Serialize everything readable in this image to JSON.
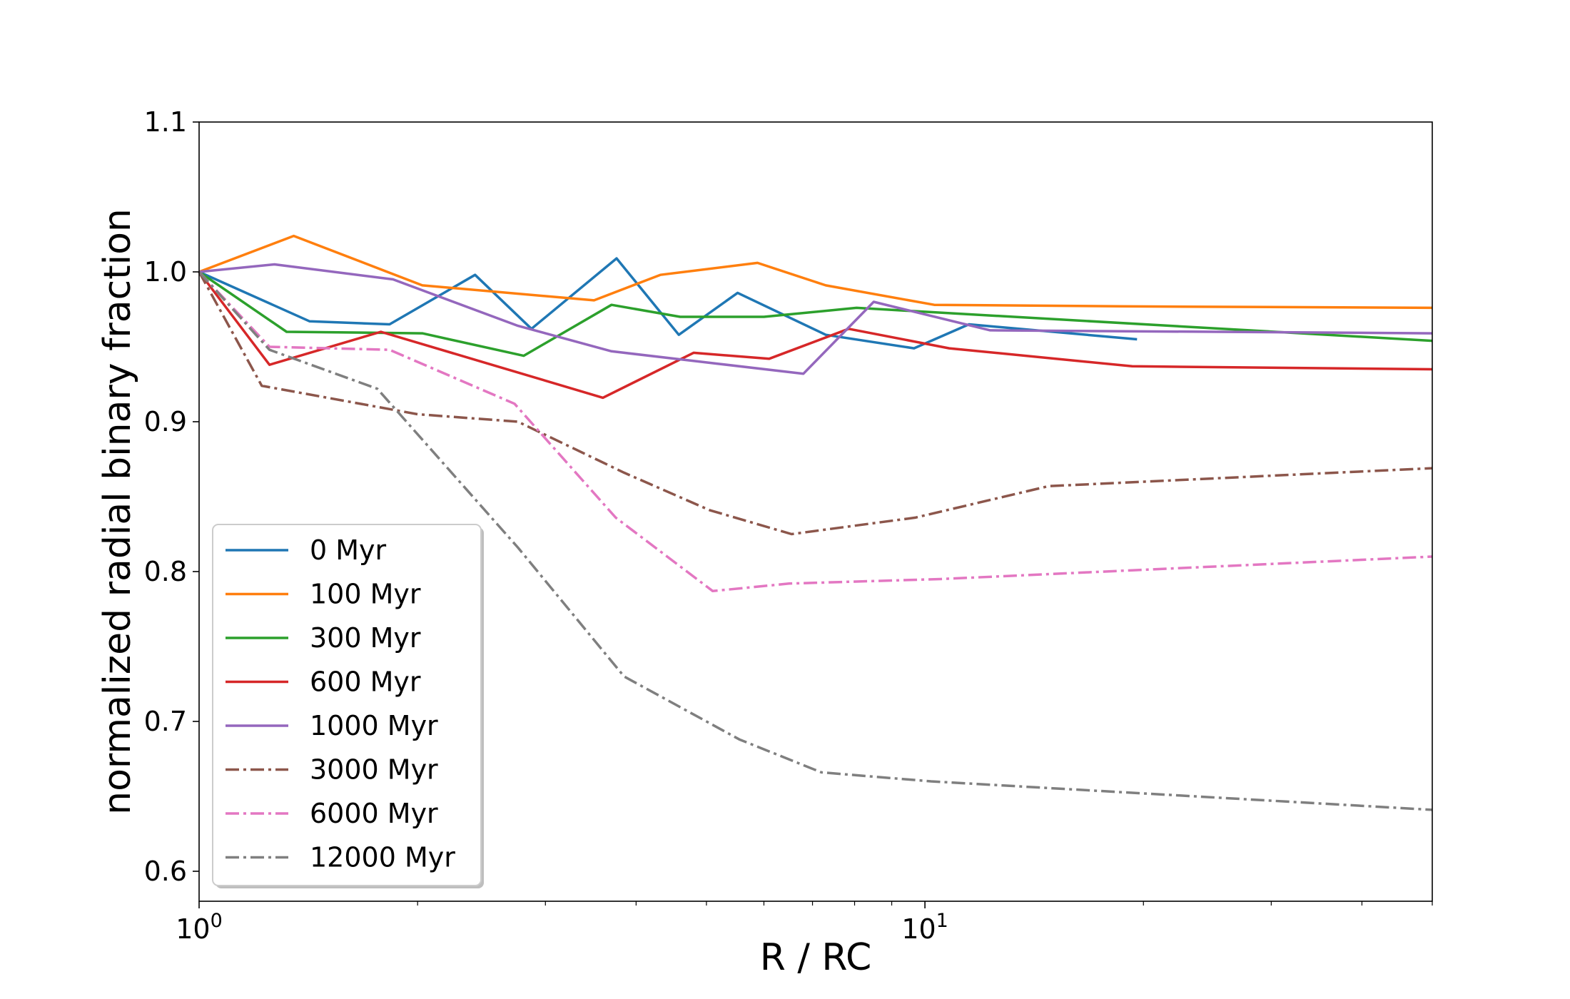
{
  "chart_data": {
    "type": "line",
    "title": "",
    "xlabel": "R / RC",
    "ylabel": "normalized radial binary fraction",
    "xscale": "log",
    "xlim": [
      1.0,
      50.0
    ],
    "ylim": [
      0.58,
      1.1
    ],
    "xticks": [
      {
        "value": 1,
        "label": "10",
        "exp": "0"
      },
      {
        "value": 10,
        "label": "10",
        "exp": "1"
      }
    ],
    "yticks": [
      {
        "value": 0.6,
        "label": "0.6"
      },
      {
        "value": 0.7,
        "label": "0.7"
      },
      {
        "value": 0.8,
        "label": "0.8"
      },
      {
        "value": 0.9,
        "label": "0.9"
      },
      {
        "value": 1.0,
        "label": "1.0"
      },
      {
        "value": 1.1,
        "label": "1.1"
      }
    ],
    "legend_position": "lower-left",
    "series": [
      {
        "name": "0 Myr",
        "color": "#1f77b4",
        "dash": "solid",
        "x": [
          1.0,
          1.42,
          1.83,
          2.4,
          2.87,
          3.76,
          4.58,
          5.52,
          7.3,
          9.66,
          11.5,
          19.6
        ],
        "y": [
          1.0,
          0.967,
          0.965,
          0.998,
          0.962,
          1.009,
          0.958,
          0.986,
          0.958,
          0.949,
          0.965,
          0.955
        ]
      },
      {
        "name": "100 Myr",
        "color": "#ff7f0e",
        "dash": "solid",
        "x": [
          1.0,
          1.35,
          2.03,
          3.5,
          4.32,
          5.88,
          7.3,
          10.3,
          18.6,
          50.0
        ],
        "y": [
          1.0,
          1.024,
          0.991,
          0.981,
          0.998,
          1.006,
          0.991,
          0.978,
          0.977,
          0.976
        ]
      },
      {
        "name": "300 Myr",
        "color": "#2ca02c",
        "dash": "solid",
        "x": [
          1.0,
          1.32,
          2.03,
          2.8,
          3.7,
          4.6,
          6.0,
          8.05,
          50.0
        ],
        "y": [
          1.0,
          0.96,
          0.959,
          0.944,
          0.978,
          0.97,
          0.97,
          0.976,
          0.954
        ]
      },
      {
        "name": "600 Myr",
        "color": "#d62728",
        "dash": "solid",
        "x": [
          1.0,
          1.25,
          1.78,
          3.6,
          4.8,
          6.1,
          7.85,
          10.8,
          19.3,
          50.0
        ],
        "y": [
          1.0,
          0.938,
          0.96,
          0.916,
          0.946,
          0.942,
          0.962,
          0.949,
          0.937,
          0.935
        ]
      },
      {
        "name": "1000 Myr",
        "color": "#9467bd",
        "dash": "solid",
        "x": [
          1.0,
          1.27,
          1.85,
          2.75,
          3.7,
          6.8,
          8.5,
          12.3,
          50.0
        ],
        "y": [
          1.0,
          1.005,
          0.995,
          0.964,
          0.947,
          0.932,
          0.98,
          0.961,
          0.959
        ]
      },
      {
        "name": "3000 Myr",
        "color": "#8c564b",
        "dash": "dashdot",
        "x": [
          1.0,
          1.22,
          2.0,
          2.75,
          3.85,
          5.05,
          6.55,
          9.7,
          14.8,
          50.0
        ],
        "y": [
          1.0,
          0.924,
          0.905,
          0.9,
          0.866,
          0.841,
          0.825,
          0.836,
          0.857,
          0.869
        ]
      },
      {
        "name": "6000 Myr",
        "color": "#e377c2",
        "dash": "dashdot",
        "x": [
          1.0,
          1.25,
          1.83,
          2.72,
          3.75,
          5.1,
          6.5,
          10.5,
          50.0
        ],
        "y": [
          1.0,
          0.95,
          0.948,
          0.912,
          0.836,
          0.787,
          0.792,
          0.795,
          0.81
        ]
      },
      {
        "name": "12000 Myr",
        "color": "#7f7f7f",
        "dash": "dashdot",
        "x": [
          1.0,
          1.25,
          1.76,
          2.75,
          3.85,
          5.55,
          7.2,
          10.2,
          50.0
        ],
        "y": [
          1.0,
          0.948,
          0.922,
          0.816,
          0.73,
          0.688,
          0.666,
          0.66,
          0.641
        ]
      }
    ]
  }
}
